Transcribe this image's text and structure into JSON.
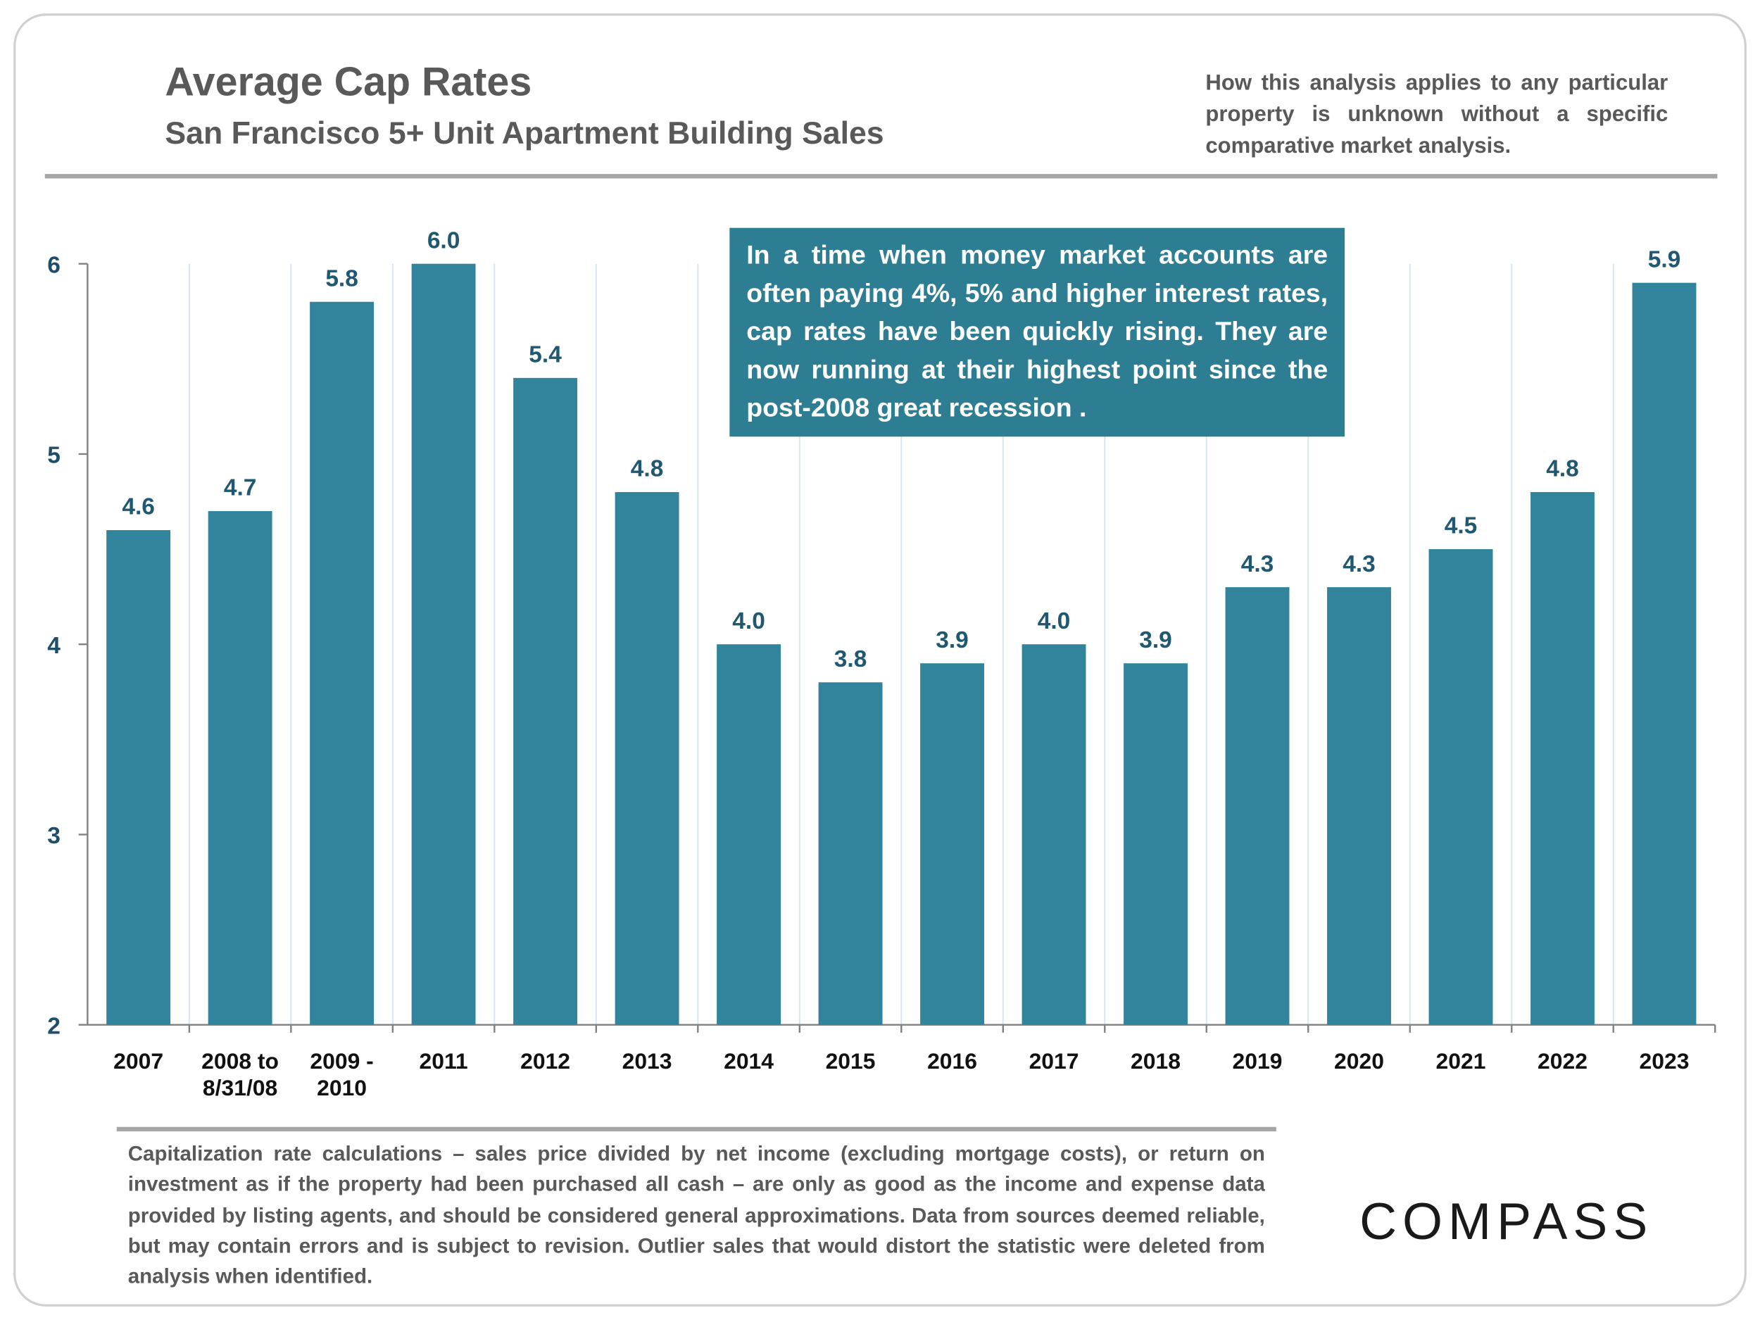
{
  "chart_data": {
    "type": "bar",
    "title": "Average Cap Rates",
    "subtitle": "San Francisco 5+ Unit Apartment Building Sales",
    "note": "How this analysis applies to any particular property is unknown without a specific comparative market analysis.",
    "annotation": "In a time when money market accounts are often paying 4%, 5% and higher interest rates, cap rates have been quickly rising. They are now running at their highest point since the post-2008 great recession .",
    "footnote": "Capitalization rate calculations – sales price divided by net income (excluding mortgage costs), or return on investment as if the property had been purchased all cash – are only as good as the income and expense data provided by listing agents, and should be considered general approximations. Data from sources deemed reliable, but may contain errors and is subject to revision. Outlier sales that would distort the statistic were deleted from analysis when identified.",
    "brand": "COMPASS",
    "categories": [
      "2007",
      "2008 to\n8/31/08",
      "2009 -\n2010",
      "2011",
      "2012",
      "2013",
      "2014",
      "2015",
      "2016",
      "2017",
      "2018",
      "2019",
      "2020",
      "2021",
      "2022",
      "2023"
    ],
    "values": [
      4.6,
      4.7,
      5.8,
      6.0,
      5.4,
      4.8,
      4.0,
      3.8,
      3.9,
      4.0,
      3.9,
      4.3,
      4.3,
      4.5,
      4.8,
      5.9
    ],
    "value_labels": [
      "4.6",
      "4.7",
      "5.8",
      "6.0",
      "5.4",
      "4.8",
      "4.0",
      "3.8",
      "3.9",
      "4.0",
      "3.9",
      "4.3",
      "4.3",
      "4.5",
      "4.8",
      "5.9"
    ],
    "color": "#31849b",
    "ylim": [
      2,
      6
    ],
    "yticks": [
      2,
      3,
      4,
      5,
      6
    ],
    "grid": true
  }
}
